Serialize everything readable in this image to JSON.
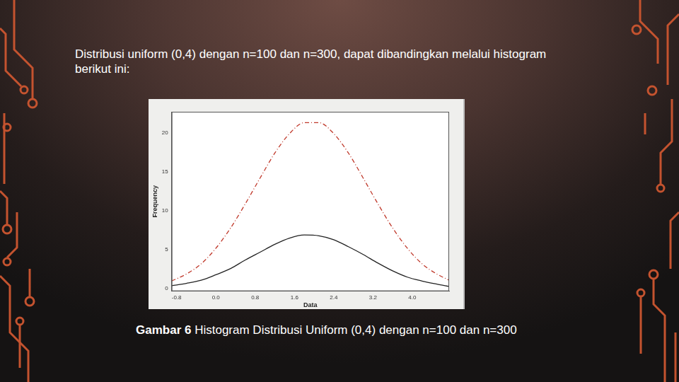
{
  "heading": "Distribusi uniform (0,4) dengan n=100 dan n=300, dapat dibandingkan melalui histogram berikut ini:",
  "caption": {
    "label": "Gambar 6",
    "text": "Histogram Distribusi Uniform (0,4) dengan n=100 dan n=300"
  },
  "chart_data": {
    "type": "line",
    "x_label": "Data",
    "y_label": "Frequency",
    "x": [
      -0.9,
      -0.6,
      -0.3,
      0,
      0.3,
      0.6,
      0.9,
      1.2,
      1.5,
      1.8,
      2.1,
      2.4,
      2.7,
      3.0,
      3.3,
      3.6,
      3.9,
      4.2,
      4.5,
      4.75
    ],
    "series": [
      {
        "color": "#c0392b",
        "line_style": "dashed",
        "values": [
          1.0,
          1.9,
          3.2,
          5.2,
          7.8,
          10.9,
          14.2,
          17.4,
          19.9,
          21.3,
          21.3,
          19.9,
          17.4,
          14.2,
          10.9,
          7.8,
          5.2,
          3.2,
          1.9,
          1.1
        ]
      },
      {
        "color": "#222222",
        "line_style": "solid",
        "values": [
          0.4,
          0.7,
          1.1,
          1.8,
          2.6,
          3.7,
          4.7,
          5.7,
          6.5,
          6.9,
          6.8,
          6.3,
          5.4,
          4.4,
          3.3,
          2.3,
          1.5,
          1.0,
          0.6,
          0.3
        ]
      }
    ],
    "xlim": [
      -0.9,
      4.75
    ],
    "ylim": [
      -0.3,
      22.7
    ],
    "xticks": [
      -0.8,
      {
        "value": 0,
        "label": "0.0"
      },
      0.8,
      1.6,
      2.4,
      3.2,
      {
        "value": 4,
        "label": "4.0"
      }
    ],
    "yticks": [
      0,
      5,
      10,
      15,
      20
    ],
    "grid": false
  }
}
